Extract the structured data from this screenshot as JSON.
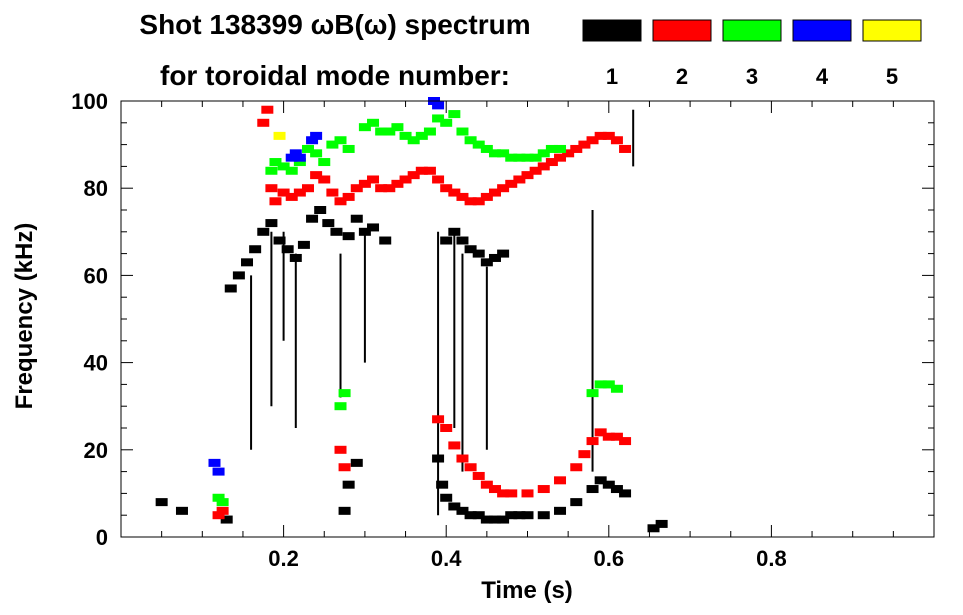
{
  "chart_data": {
    "type": "scatter",
    "title_line1": "Shot 138399 ωB(ω) spectrum",
    "title_line2": "for toroidal mode number:",
    "xlabel": "Time (s)",
    "ylabel": "Frequency (kHz)",
    "xlim": [
      0.0,
      1.0
    ],
    "ylim": [
      0,
      100
    ],
    "x_tick_labels": [
      {
        "value": 0.2,
        "label": "0.2"
      },
      {
        "value": 0.4,
        "label": "0.4"
      },
      {
        "value": 0.6,
        "label": "0.6"
      },
      {
        "value": 0.8,
        "label": "0.8"
      }
    ],
    "y_tick_labels": [
      {
        "value": 0,
        "label": "0"
      },
      {
        "value": 20,
        "label": "20"
      },
      {
        "value": 40,
        "label": "40"
      },
      {
        "value": 60,
        "label": "60"
      },
      {
        "value": 80,
        "label": "80"
      },
      {
        "value": 100,
        "label": "100"
      }
    ],
    "legend": [
      {
        "label": "1",
        "color": "#000000"
      },
      {
        "label": "2",
        "color": "#ff0000"
      },
      {
        "label": "3",
        "color": "#00ff00"
      },
      {
        "label": "4",
        "color": "#0000ff"
      },
      {
        "label": "5",
        "color": "#ffff00"
      }
    ],
    "series": [
      {
        "name": "n=1",
        "color": "#000000",
        "points": [
          [
            0.135,
            57
          ],
          [
            0.145,
            60
          ],
          [
            0.155,
            63
          ],
          [
            0.165,
            66
          ],
          [
            0.175,
            70
          ],
          [
            0.185,
            72
          ],
          [
            0.195,
            68
          ],
          [
            0.205,
            66
          ],
          [
            0.215,
            64
          ],
          [
            0.225,
            67
          ],
          [
            0.235,
            73
          ],
          [
            0.245,
            75
          ],
          [
            0.255,
            72
          ],
          [
            0.265,
            70
          ],
          [
            0.28,
            69
          ],
          [
            0.29,
            73
          ],
          [
            0.3,
            70
          ],
          [
            0.31,
            71
          ],
          [
            0.325,
            68
          ],
          [
            0.4,
            68
          ],
          [
            0.41,
            70
          ],
          [
            0.42,
            68
          ],
          [
            0.43,
            66
          ],
          [
            0.44,
            65
          ],
          [
            0.45,
            63
          ],
          [
            0.46,
            64
          ],
          [
            0.47,
            65
          ],
          [
            0.13,
            4
          ],
          [
            0.28,
            12
          ],
          [
            0.29,
            17
          ],
          [
            0.275,
            6
          ],
          [
            0.075,
            6
          ],
          [
            0.05,
            8
          ],
          [
            0.39,
            18
          ],
          [
            0.395,
            12
          ],
          [
            0.4,
            9
          ],
          [
            0.41,
            7
          ],
          [
            0.42,
            6
          ],
          [
            0.43,
            5
          ],
          [
            0.44,
            5
          ],
          [
            0.45,
            4
          ],
          [
            0.46,
            4
          ],
          [
            0.47,
            4
          ],
          [
            0.48,
            5
          ],
          [
            0.49,
            5
          ],
          [
            0.5,
            5
          ],
          [
            0.52,
            5
          ],
          [
            0.54,
            6
          ],
          [
            0.56,
            8
          ],
          [
            0.58,
            11
          ],
          [
            0.59,
            13
          ],
          [
            0.6,
            12
          ],
          [
            0.61,
            11
          ],
          [
            0.62,
            10
          ],
          [
            0.655,
            2
          ],
          [
            0.665,
            3
          ]
        ],
        "lines": [
          [
            0.16,
            20,
            0.16,
            60
          ],
          [
            0.185,
            30,
            0.185,
            70
          ],
          [
            0.2,
            45,
            0.2,
            70
          ],
          [
            0.215,
            25,
            0.215,
            65
          ],
          [
            0.27,
            32,
            0.27,
            65
          ],
          [
            0.3,
            40,
            0.3,
            70
          ],
          [
            0.39,
            5,
            0.39,
            70
          ],
          [
            0.41,
            25,
            0.41,
            70
          ],
          [
            0.42,
            15,
            0.42,
            65
          ],
          [
            0.45,
            20,
            0.45,
            62
          ],
          [
            0.58,
            15,
            0.58,
            75
          ],
          [
            0.63,
            85,
            0.63,
            98
          ]
        ]
      },
      {
        "name": "n=2",
        "color": "#ff0000",
        "points": [
          [
            0.12,
            5
          ],
          [
            0.125,
            6
          ],
          [
            0.27,
            20
          ],
          [
            0.275,
            16
          ],
          [
            0.185,
            80
          ],
          [
            0.19,
            77
          ],
          [
            0.2,
            79
          ],
          [
            0.21,
            78
          ],
          [
            0.22,
            79
          ],
          [
            0.23,
            80
          ],
          [
            0.24,
            83
          ],
          [
            0.25,
            82
          ],
          [
            0.26,
            79
          ],
          [
            0.27,
            77
          ],
          [
            0.28,
            78
          ],
          [
            0.29,
            80
          ],
          [
            0.3,
            81
          ],
          [
            0.31,
            82
          ],
          [
            0.32,
            80
          ],
          [
            0.33,
            80
          ],
          [
            0.34,
            81
          ],
          [
            0.35,
            82
          ],
          [
            0.36,
            83
          ],
          [
            0.37,
            84
          ],
          [
            0.38,
            84
          ],
          [
            0.39,
            82
          ],
          [
            0.4,
            80
          ],
          [
            0.41,
            79
          ],
          [
            0.42,
            78
          ],
          [
            0.43,
            77
          ],
          [
            0.44,
            77
          ],
          [
            0.45,
            78
          ],
          [
            0.46,
            79
          ],
          [
            0.47,
            80
          ],
          [
            0.48,
            81
          ],
          [
            0.49,
            82
          ],
          [
            0.5,
            83
          ],
          [
            0.51,
            84
          ],
          [
            0.52,
            85
          ],
          [
            0.53,
            86
          ],
          [
            0.54,
            87
          ],
          [
            0.55,
            88
          ],
          [
            0.56,
            89
          ],
          [
            0.57,
            90
          ],
          [
            0.58,
            91
          ],
          [
            0.59,
            92
          ],
          [
            0.6,
            92
          ],
          [
            0.61,
            91
          ],
          [
            0.62,
            89
          ],
          [
            0.175,
            95
          ],
          [
            0.18,
            98
          ],
          [
            0.39,
            27
          ],
          [
            0.4,
            25
          ],
          [
            0.41,
            21
          ],
          [
            0.42,
            18
          ],
          [
            0.43,
            16
          ],
          [
            0.44,
            14
          ],
          [
            0.45,
            12
          ],
          [
            0.46,
            11
          ],
          [
            0.47,
            10
          ],
          [
            0.48,
            10
          ],
          [
            0.5,
            10
          ],
          [
            0.52,
            11
          ],
          [
            0.54,
            13
          ],
          [
            0.56,
            16
          ],
          [
            0.57,
            19
          ],
          [
            0.58,
            22
          ],
          [
            0.59,
            24
          ],
          [
            0.6,
            23
          ],
          [
            0.61,
            23
          ],
          [
            0.62,
            22
          ]
        ],
        "lines": []
      },
      {
        "name": "n=3",
        "color": "#00ff00",
        "points": [
          [
            0.12,
            9
          ],
          [
            0.125,
            8
          ],
          [
            0.27,
            30
          ],
          [
            0.275,
            33
          ],
          [
            0.185,
            84
          ],
          [
            0.19,
            86
          ],
          [
            0.2,
            85
          ],
          [
            0.21,
            84
          ],
          [
            0.22,
            86
          ],
          [
            0.23,
            89
          ],
          [
            0.24,
            88
          ],
          [
            0.25,
            86
          ],
          [
            0.26,
            90
          ],
          [
            0.27,
            91
          ],
          [
            0.28,
            89
          ],
          [
            0.3,
            94
          ],
          [
            0.31,
            95
          ],
          [
            0.32,
            93
          ],
          [
            0.33,
            93
          ],
          [
            0.34,
            94
          ],
          [
            0.35,
            92
          ],
          [
            0.36,
            91
          ],
          [
            0.37,
            92
          ],
          [
            0.38,
            93
          ],
          [
            0.39,
            96
          ],
          [
            0.4,
            95
          ],
          [
            0.41,
            97
          ],
          [
            0.42,
            93
          ],
          [
            0.43,
            91
          ],
          [
            0.44,
            90
          ],
          [
            0.45,
            89
          ],
          [
            0.46,
            88
          ],
          [
            0.47,
            88
          ],
          [
            0.48,
            87
          ],
          [
            0.49,
            87
          ],
          [
            0.5,
            87
          ],
          [
            0.51,
            87
          ],
          [
            0.52,
            88
          ],
          [
            0.53,
            89
          ],
          [
            0.54,
            89
          ],
          [
            0.58,
            33
          ],
          [
            0.59,
            35
          ],
          [
            0.6,
            35
          ],
          [
            0.61,
            34
          ]
        ],
        "lines": []
      },
      {
        "name": "n=4",
        "color": "#0000ff",
        "points": [
          [
            0.115,
            17
          ],
          [
            0.12,
            15
          ],
          [
            0.21,
            87
          ],
          [
            0.215,
            88
          ],
          [
            0.22,
            87
          ],
          [
            0.235,
            91
          ],
          [
            0.24,
            92
          ],
          [
            0.385,
            100
          ],
          [
            0.39,
            99
          ]
        ],
        "lines": []
      },
      {
        "name": "n=5",
        "color": "#ffff00",
        "points": [
          [
            0.195,
            92
          ]
        ],
        "lines": []
      }
    ]
  }
}
